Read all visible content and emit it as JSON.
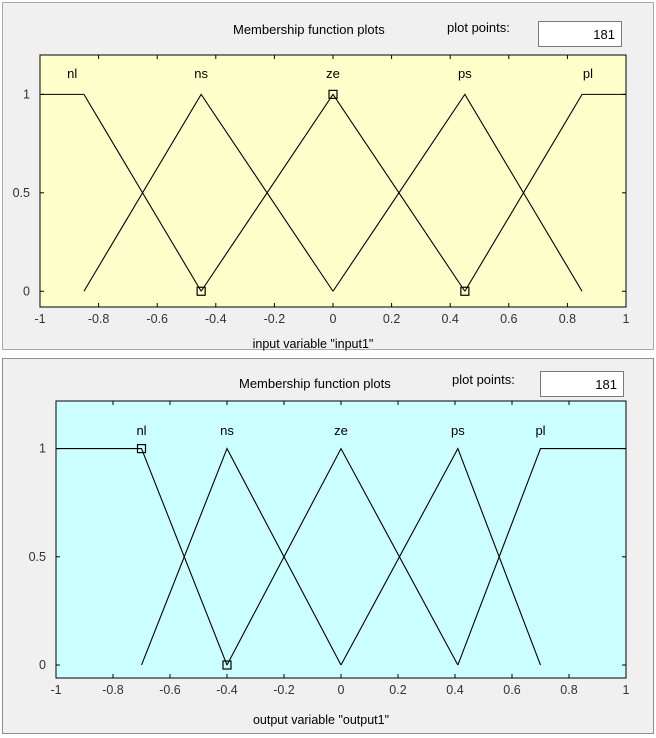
{
  "top": {
    "title": "Membership function plots",
    "plot_points_label": "plot points:",
    "plot_points_value": "181",
    "bg": "#ffffcc",
    "chart_data": {
      "type": "line",
      "xlabel": "input variable \"input1\"",
      "xlim": [
        -1,
        1
      ],
      "ylim": [
        -0.08,
        1.2
      ],
      "xticks": [
        "-1",
        "-0.8",
        "-0.6",
        "-0.4",
        "-0.2",
        "0",
        "0.2",
        "0.4",
        "0.6",
        "0.8",
        "1"
      ],
      "yticks": [
        "0",
        "0.5",
        "1"
      ],
      "series": [
        {
          "name": "nl",
          "x": [
            -1,
            -0.85,
            -0.45
          ],
          "y": [
            1,
            1,
            0
          ],
          "label_x": -0.89
        },
        {
          "name": "ns",
          "x": [
            -0.85,
            -0.45,
            0
          ],
          "y": [
            0,
            1,
            0
          ],
          "label_x": -0.45
        },
        {
          "name": "ze",
          "x": [
            -0.45,
            0,
            0.45
          ],
          "y": [
            0,
            1,
            0
          ],
          "label_x": 0
        },
        {
          "name": "ps",
          "x": [
            0,
            0.45,
            0.85
          ],
          "y": [
            0,
            1,
            0
          ],
          "label_x": 0.45
        },
        {
          "name": "pl",
          "x": [
            0.45,
            0.85,
            1
          ],
          "y": [
            0,
            1,
            1
          ],
          "label_x": 0.87
        }
      ],
      "markers": [
        {
          "x": -0.45,
          "y": 0
        },
        {
          "x": 0,
          "y": 1
        },
        {
          "x": 0.45,
          "y": 0
        }
      ]
    }
  },
  "bottom": {
    "title": "Membership function plots",
    "plot_points_label": "plot points:",
    "plot_points_value": "181",
    "bg": "#ccffff",
    "chart_data": {
      "type": "line",
      "xlabel": "output variable \"output1\"",
      "xlim": [
        -1,
        1
      ],
      "ylim": [
        -0.06,
        1.22
      ],
      "xticks": [
        "-1",
        "-0.8",
        "-0.6",
        "-0.4",
        "-0.2",
        "0",
        "0.2",
        "0.4",
        "0.6",
        "0.8",
        "1"
      ],
      "yticks": [
        "0",
        "0.5",
        "1"
      ],
      "series": [
        {
          "name": "nl",
          "x": [
            -1,
            -0.7,
            -0.4
          ],
          "y": [
            1,
            1,
            0
          ],
          "label_x": -0.7
        },
        {
          "name": "ns",
          "x": [
            -0.7,
            -0.4,
            0
          ],
          "y": [
            0,
            1,
            0
          ],
          "label_x": -0.4
        },
        {
          "name": "ze",
          "x": [
            -0.4,
            0,
            0.41
          ],
          "y": [
            0,
            1,
            0
          ],
          "label_x": 0
        },
        {
          "name": "ps",
          "x": [
            0,
            0.41,
            0.7
          ],
          "y": [
            0,
            1,
            0
          ],
          "label_x": 0.41
        },
        {
          "name": "pl",
          "x": [
            0.41,
            0.7,
            1
          ],
          "y": [
            0,
            1,
            1
          ],
          "label_x": 0.7
        }
      ],
      "markers": [
        {
          "x": -0.7,
          "y": 1
        },
        {
          "x": -0.4,
          "y": 0
        }
      ]
    }
  }
}
